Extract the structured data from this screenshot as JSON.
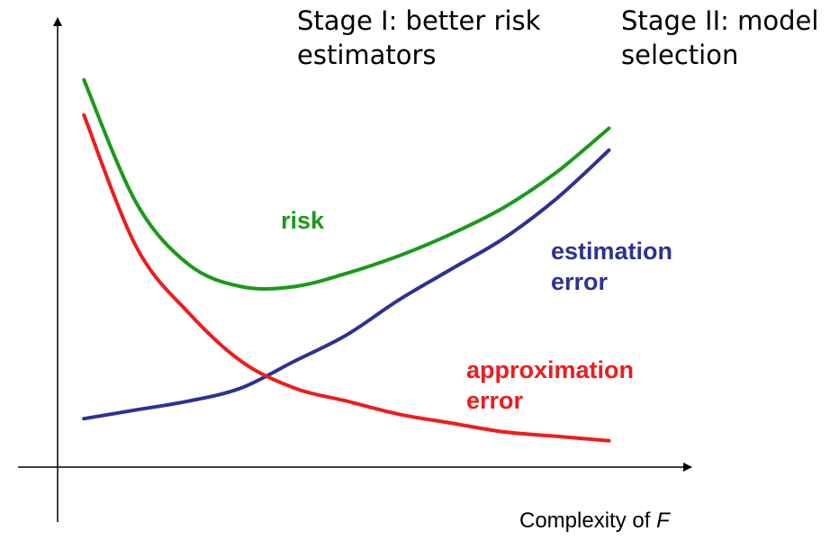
{
  "chart_data": {
    "type": "line",
    "xlabel": "Complexity of F",
    "xlabel_prefix": "Complexity of ",
    "xlabel_symbol": "F",
    "ylabel": "",
    "grid": false,
    "legend": "none",
    "x": [
      0,
      1,
      2,
      3,
      4,
      5,
      6,
      7,
      8,
      9,
      10
    ],
    "series": [
      {
        "name": "risk",
        "color": "#1a9a1a",
        "values": [
          8.8,
          6.0,
          4.6,
          4.1,
          4.1,
          4.4,
          4.8,
          5.3,
          5.9,
          6.7,
          7.7
        ]
      },
      {
        "name": "estimation error",
        "color": "#2e3192",
        "values": [
          1.1,
          1.3,
          1.5,
          1.8,
          2.4,
          3.0,
          3.8,
          4.5,
          5.2,
          6.1,
          7.2
        ]
      },
      {
        "name": "approximation error",
        "color": "#ee1c1c",
        "values": [
          8.0,
          5.0,
          3.5,
          2.4,
          1.8,
          1.5,
          1.2,
          1.0,
          0.8,
          0.7,
          0.6
        ]
      }
    ],
    "ylim": [
      0,
      10
    ],
    "xlim": [
      -0.5,
      11.5
    ],
    "labels": {
      "risk": "risk",
      "estimation": [
        "estimation",
        "error"
      ],
      "approximation": [
        "approximation",
        "error"
      ]
    }
  },
  "stages": {
    "stage1": [
      "Stage I: better risk",
      "estimators"
    ],
    "stage2": [
      "Stage II: model",
      "selection"
    ]
  }
}
